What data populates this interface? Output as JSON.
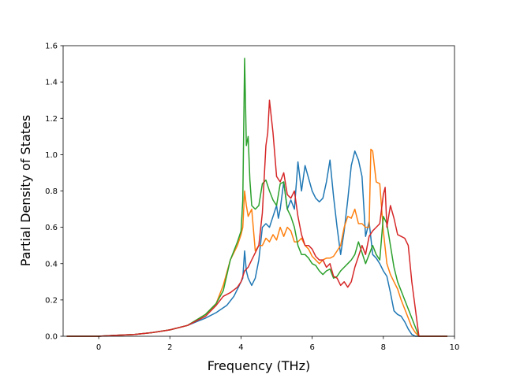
{
  "chart_data": {
    "type": "line",
    "title": "",
    "xlabel": "Frequency (THz)",
    "ylabel": "Partial Density of States",
    "xlim": [
      -1.0,
      10.0
    ],
    "ylim": [
      0.0,
      1.6
    ],
    "xticks": [
      0,
      2,
      4,
      6,
      8,
      10
    ],
    "yticks": [
      0.0,
      0.2,
      0.4,
      0.6,
      0.8,
      1.0,
      1.2,
      1.4,
      1.6
    ],
    "grid": false,
    "legend": "none",
    "series": [
      {
        "color": "#1f77b4",
        "x": [
          -0.9,
          0.0,
          0.5,
          1.0,
          1.5,
          2.0,
          2.5,
          3.0,
          3.3,
          3.6,
          3.8,
          4.0,
          4.05,
          4.1,
          4.15,
          4.2,
          4.3,
          4.4,
          4.5,
          4.6,
          4.7,
          4.8,
          4.9,
          5.0,
          5.05,
          5.1,
          5.2,
          5.3,
          5.4,
          5.5,
          5.6,
          5.7,
          5.8,
          5.9,
          6.0,
          6.1,
          6.2,
          6.3,
          6.4,
          6.5,
          6.6,
          6.7,
          6.8,
          6.9,
          7.0,
          7.1,
          7.2,
          7.3,
          7.4,
          7.5,
          7.6,
          7.7,
          7.8,
          7.9,
          8.0,
          8.1,
          8.2,
          8.3,
          8.4,
          8.5,
          8.6,
          8.7,
          8.8,
          8.9,
          9.0,
          9.8
        ],
        "y": [
          0.0,
          0.0,
          0.005,
          0.01,
          0.02,
          0.035,
          0.06,
          0.1,
          0.13,
          0.17,
          0.22,
          0.3,
          0.32,
          0.47,
          0.36,
          0.32,
          0.28,
          0.32,
          0.42,
          0.6,
          0.62,
          0.6,
          0.66,
          0.72,
          0.65,
          0.7,
          0.85,
          0.7,
          0.75,
          0.7,
          0.96,
          0.8,
          0.94,
          0.87,
          0.8,
          0.76,
          0.74,
          0.76,
          0.85,
          0.97,
          0.77,
          0.6,
          0.45,
          0.58,
          0.75,
          0.94,
          1.02,
          0.97,
          0.88,
          0.55,
          0.63,
          0.45,
          0.43,
          0.4,
          0.36,
          0.33,
          0.24,
          0.14,
          0.12,
          0.11,
          0.08,
          0.04,
          0.01,
          0.0,
          0.0,
          0.0
        ]
      },
      {
        "color": "#ff7f0e",
        "x": [
          -0.9,
          0.0,
          0.5,
          1.0,
          1.5,
          2.0,
          2.5,
          3.0,
          3.3,
          3.5,
          3.7,
          3.8,
          3.9,
          4.0,
          4.05,
          4.1,
          4.15,
          4.2,
          4.3,
          4.4,
          4.5,
          4.6,
          4.7,
          4.8,
          4.9,
          5.0,
          5.1,
          5.2,
          5.3,
          5.4,
          5.5,
          5.6,
          5.7,
          5.8,
          5.9,
          6.0,
          6.1,
          6.2,
          6.3,
          6.4,
          6.5,
          6.6,
          6.7,
          6.8,
          6.9,
          7.0,
          7.1,
          7.2,
          7.3,
          7.4,
          7.5,
          7.6,
          7.65,
          7.7,
          7.8,
          7.9,
          8.0,
          8.1,
          8.2,
          8.3,
          8.4,
          8.5,
          8.6,
          8.7,
          8.8,
          8.9,
          9.0,
          9.8
        ],
        "y": [
          0.0,
          0.0,
          0.005,
          0.01,
          0.02,
          0.035,
          0.06,
          0.12,
          0.18,
          0.28,
          0.42,
          0.46,
          0.5,
          0.56,
          0.6,
          0.8,
          0.72,
          0.66,
          0.7,
          0.47,
          0.5,
          0.5,
          0.54,
          0.52,
          0.56,
          0.53,
          0.6,
          0.55,
          0.6,
          0.58,
          0.52,
          0.52,
          0.54,
          0.5,
          0.48,
          0.44,
          0.42,
          0.4,
          0.42,
          0.43,
          0.43,
          0.44,
          0.47,
          0.5,
          0.6,
          0.66,
          0.65,
          0.7,
          0.62,
          0.62,
          0.6,
          0.6,
          1.03,
          1.02,
          0.85,
          0.84,
          0.58,
          0.4,
          0.34,
          0.3,
          0.26,
          0.2,
          0.15,
          0.1,
          0.05,
          0.02,
          0.0,
          0.0
        ]
      },
      {
        "color": "#2ca02c",
        "x": [
          -0.9,
          0.0,
          0.5,
          1.0,
          1.5,
          2.0,
          2.5,
          3.0,
          3.3,
          3.5,
          3.7,
          3.9,
          4.0,
          4.05,
          4.1,
          4.15,
          4.2,
          4.25,
          4.3,
          4.4,
          4.5,
          4.6,
          4.7,
          4.8,
          4.9,
          5.0,
          5.1,
          5.2,
          5.3,
          5.4,
          5.5,
          5.6,
          5.7,
          5.8,
          5.9,
          6.0,
          6.1,
          6.2,
          6.3,
          6.4,
          6.5,
          6.6,
          6.7,
          6.8,
          6.9,
          7.0,
          7.1,
          7.2,
          7.3,
          7.4,
          7.5,
          7.6,
          7.7,
          7.8,
          7.9,
          8.0,
          8.1,
          8.2,
          8.3,
          8.4,
          8.5,
          8.6,
          8.7,
          8.8,
          9.0,
          9.8
        ],
        "y": [
          0.0,
          0.0,
          0.005,
          0.01,
          0.02,
          0.035,
          0.06,
          0.12,
          0.18,
          0.25,
          0.42,
          0.52,
          0.58,
          0.75,
          1.53,
          1.05,
          1.1,
          0.86,
          0.72,
          0.7,
          0.72,
          0.84,
          0.86,
          0.8,
          0.75,
          0.72,
          0.84,
          0.85,
          0.7,
          0.66,
          0.6,
          0.5,
          0.45,
          0.45,
          0.43,
          0.4,
          0.39,
          0.36,
          0.34,
          0.36,
          0.37,
          0.32,
          0.33,
          0.36,
          0.38,
          0.4,
          0.42,
          0.45,
          0.52,
          0.46,
          0.4,
          0.45,
          0.5,
          0.45,
          0.42,
          0.66,
          0.62,
          0.5,
          0.38,
          0.3,
          0.25,
          0.2,
          0.15,
          0.1,
          0.0,
          0.0
        ]
      },
      {
        "color": "#d62728",
        "x": [
          -0.9,
          0.0,
          0.5,
          1.0,
          1.5,
          2.0,
          2.5,
          3.0,
          3.3,
          3.5,
          3.7,
          3.9,
          4.0,
          4.1,
          4.2,
          4.3,
          4.4,
          4.5,
          4.6,
          4.7,
          4.75,
          4.8,
          4.9,
          5.0,
          5.1,
          5.2,
          5.3,
          5.4,
          5.5,
          5.6,
          5.7,
          5.8,
          5.9,
          6.0,
          6.1,
          6.2,
          6.3,
          6.4,
          6.5,
          6.6,
          6.7,
          6.8,
          6.9,
          7.0,
          7.1,
          7.2,
          7.3,
          7.4,
          7.5,
          7.6,
          7.7,
          7.8,
          7.9,
          8.0,
          8.05,
          8.1,
          8.2,
          8.3,
          8.4,
          8.5,
          8.6,
          8.7,
          8.8,
          8.9,
          9.0,
          9.8
        ],
        "y": [
          0.0,
          0.0,
          0.005,
          0.01,
          0.02,
          0.035,
          0.06,
          0.11,
          0.17,
          0.22,
          0.24,
          0.27,
          0.3,
          0.36,
          0.38,
          0.42,
          0.46,
          0.5,
          0.68,
          1.05,
          1.12,
          1.3,
          1.12,
          0.88,
          0.85,
          0.9,
          0.78,
          0.76,
          0.8,
          0.66,
          0.56,
          0.5,
          0.5,
          0.48,
          0.44,
          0.42,
          0.42,
          0.38,
          0.4,
          0.33,
          0.32,
          0.28,
          0.3,
          0.27,
          0.3,
          0.38,
          0.44,
          0.5,
          0.45,
          0.55,
          0.58,
          0.6,
          0.62,
          0.78,
          0.82,
          0.6,
          0.72,
          0.65,
          0.56,
          0.55,
          0.54,
          0.5,
          0.3,
          0.15,
          0.0,
          0.0
        ]
      }
    ]
  }
}
